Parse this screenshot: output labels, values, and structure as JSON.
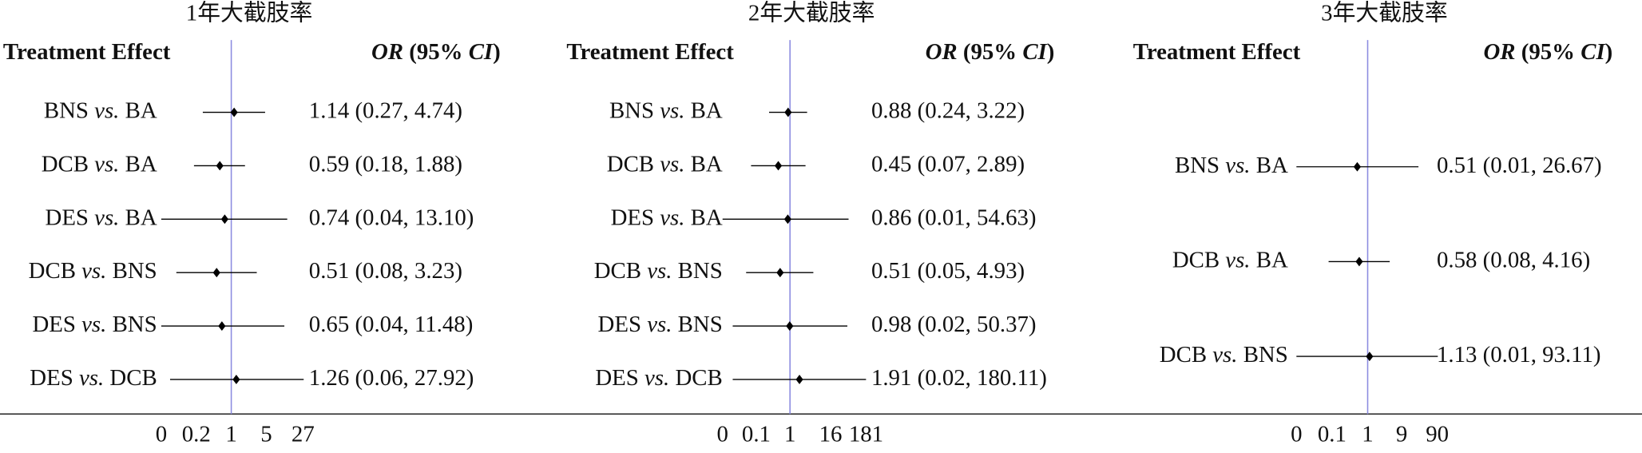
{
  "chart_data": [
    {
      "type": "forest",
      "title": "1年大截肢率",
      "header_left": "Treatment Effect",
      "header_right": "OR (95% CI)",
      "categories": [
        "BNS vs. BA",
        "DCB vs. BA",
        "DES vs. BA",
        "DCB vs. BNS",
        "DES vs. BNS",
        "DES vs. DCB"
      ],
      "values": [
        1.14,
        0.59,
        0.74,
        0.51,
        0.65,
        1.26
      ],
      "lower": [
        0.27,
        0.18,
        0.04,
        0.08,
        0.04,
        0.06
      ],
      "upper": [
        4.74,
        1.88,
        13.1,
        3.23,
        11.48,
        27.92
      ],
      "value_labels": [
        "1.14 (0.27, 4.74)",
        "0.59 (0.18, 1.88)",
        "0.74 (0.04, 13.10)",
        "0.51 (0.08, 3.23)",
        "0.65 (0.04, 11.48)",
        "1.26 (0.06, 27.92)"
      ],
      "xlim": [
        0.04,
        27.92
      ],
      "xticks": [
        {
          "value": 0.04,
          "label": "0"
        },
        0.2,
        1,
        5,
        27
      ],
      "log_x": true,
      "ref_line": 1,
      "color": "#000000",
      "ref_color": "#8c8ce0"
    },
    {
      "type": "forest",
      "title": "2年大截肢率",
      "header_left": "Treatment Effect",
      "header_right": "OR (95% CI)",
      "categories": [
        "BNS vs. BA",
        "DCB vs. BA",
        "DES vs. BA",
        "DCB vs. BNS",
        "DES vs. BNS",
        "DES vs. DCB"
      ],
      "values": [
        0.88,
        0.45,
        0.86,
        0.51,
        0.98,
        1.91
      ],
      "lower": [
        0.24,
        0.07,
        0.01,
        0.05,
        0.02,
        0.02
      ],
      "upper": [
        3.22,
        2.89,
        54.63,
        4.93,
        50.37,
        180.11
      ],
      "value_labels": [
        "0.88 (0.24, 3.22)",
        "0.45 (0.07, 2.89)",
        "0.86 (0.01, 54.63)",
        "0.51 (0.05, 4.93)",
        "0.98 (0.02, 50.37)",
        "1.91 (0.02, 180.11)"
      ],
      "xlim": [
        0.01,
        180.11
      ],
      "xticks": [
        {
          "value": 0.01,
          "label": "0"
        },
        0.1,
        1,
        16,
        181
      ],
      "log_x": true,
      "ref_line": 1,
      "color": "#000000",
      "ref_color": "#8c8ce0"
    },
    {
      "type": "forest",
      "title": "3年大截肢率",
      "header_left": "Treatment Effect",
      "header_right": "OR (95% CI)",
      "categories": [
        "BNS vs. BA",
        "DCB vs. BA",
        "DCB vs. BNS"
      ],
      "values": [
        0.51,
        0.58,
        1.13
      ],
      "lower": [
        0.01,
        0.08,
        0.01
      ],
      "upper": [
        26.67,
        4.16,
        93.11
      ],
      "value_labels": [
        "0.51 (0.01, 26.67)",
        "0.58 (0.08, 4.16)",
        "1.13 (0.01, 93.11)"
      ],
      "xlim": [
        0.01,
        93.11
      ],
      "xticks": [
        {
          "value": 0.01,
          "label": "0"
        },
        0.1,
        1,
        9,
        90
      ],
      "log_x": true,
      "ref_line": 1,
      "color": "#000000",
      "ref_color": "#8c8ce0"
    }
  ]
}
